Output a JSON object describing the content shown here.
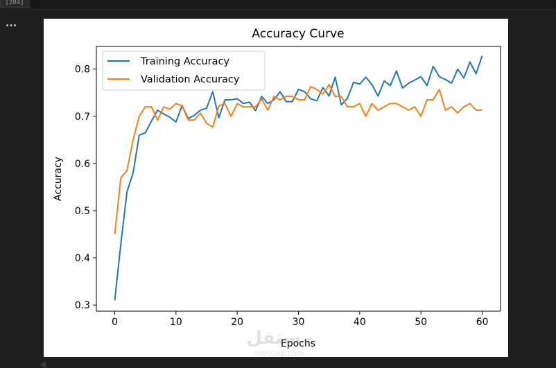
{
  "notebook": {
    "execution_count": "[284]",
    "output_menu": "..."
  },
  "watermark": {
    "logo": "مستقل",
    "site": "mostaql.com"
  },
  "colors": {
    "training": "#1f77b4",
    "validation": "#ff7f0e",
    "page_background": "#1f1f1f"
  },
  "chart_data": {
    "type": "line",
    "title": "Accuracy Curve",
    "xlabel": "Epochs",
    "ylabel": "Accuracy",
    "xlim": [
      -3,
      63
    ],
    "ylim": [
      0.287,
      0.848
    ],
    "xticks": [
      0,
      10,
      20,
      30,
      40,
      50,
      60
    ],
    "yticks": [
      0.3,
      0.4,
      0.5,
      0.6,
      0.7,
      0.8
    ],
    "ytick_labels": [
      "0.3",
      "0.4",
      "0.5",
      "0.6",
      "0.7",
      "0.8"
    ],
    "grid": false,
    "legend": "upper-left",
    "x": [
      0,
      1,
      2,
      3,
      4,
      5,
      6,
      7,
      8,
      9,
      10,
      11,
      12,
      13,
      14,
      15,
      16,
      17,
      18,
      19,
      20,
      21,
      22,
      23,
      24,
      25,
      26,
      27,
      28,
      29,
      30,
      31,
      32,
      33,
      34,
      35,
      36,
      37,
      38,
      39,
      40,
      41,
      42,
      43,
      44,
      45,
      46,
      47,
      48,
      49,
      50,
      51,
      52,
      53,
      54,
      55,
      56,
      57,
      58,
      59,
      60
    ],
    "series": [
      {
        "name": "Training Accuracy",
        "color": "#1f77b4",
        "values": [
          0.31,
          0.43,
          0.54,
          0.58,
          0.66,
          0.665,
          0.69,
          0.713,
          0.705,
          0.698,
          0.688,
          0.723,
          0.695,
          0.702,
          0.713,
          0.717,
          0.752,
          0.697,
          0.735,
          0.735,
          0.737,
          0.727,
          0.73,
          0.712,
          0.742,
          0.727,
          0.735,
          0.752,
          0.731,
          0.731,
          0.757,
          0.752,
          0.737,
          0.733,
          0.761,
          0.743,
          0.783,
          0.724,
          0.738,
          0.772,
          0.768,
          0.783,
          0.767,
          0.743,
          0.775,
          0.765,
          0.796,
          0.76,
          0.77,
          0.777,
          0.784,
          0.765,
          0.806,
          0.784,
          0.778,
          0.77,
          0.8,
          0.781,
          0.815,
          0.79,
          0.828
        ]
      },
      {
        "name": "Validation Accuracy",
        "color": "#ff7f0e",
        "values": [
          0.45,
          0.57,
          0.585,
          0.65,
          0.7,
          0.72,
          0.72,
          0.692,
          0.72,
          0.715,
          0.727,
          0.722,
          0.692,
          0.692,
          0.707,
          0.685,
          0.677,
          0.722,
          0.727,
          0.7,
          0.727,
          0.72,
          0.72,
          0.72,
          0.737,
          0.713,
          0.742,
          0.735,
          0.742,
          0.742,
          0.735,
          0.735,
          0.763,
          0.757,
          0.747,
          0.767,
          0.742,
          0.742,
          0.72,
          0.72,
          0.727,
          0.7,
          0.727,
          0.713,
          0.72,
          0.727,
          0.727,
          0.72,
          0.713,
          0.72,
          0.7,
          0.735,
          0.735,
          0.757,
          0.713,
          0.72,
          0.707,
          0.72,
          0.727,
          0.713,
          0.713
        ]
      }
    ]
  }
}
